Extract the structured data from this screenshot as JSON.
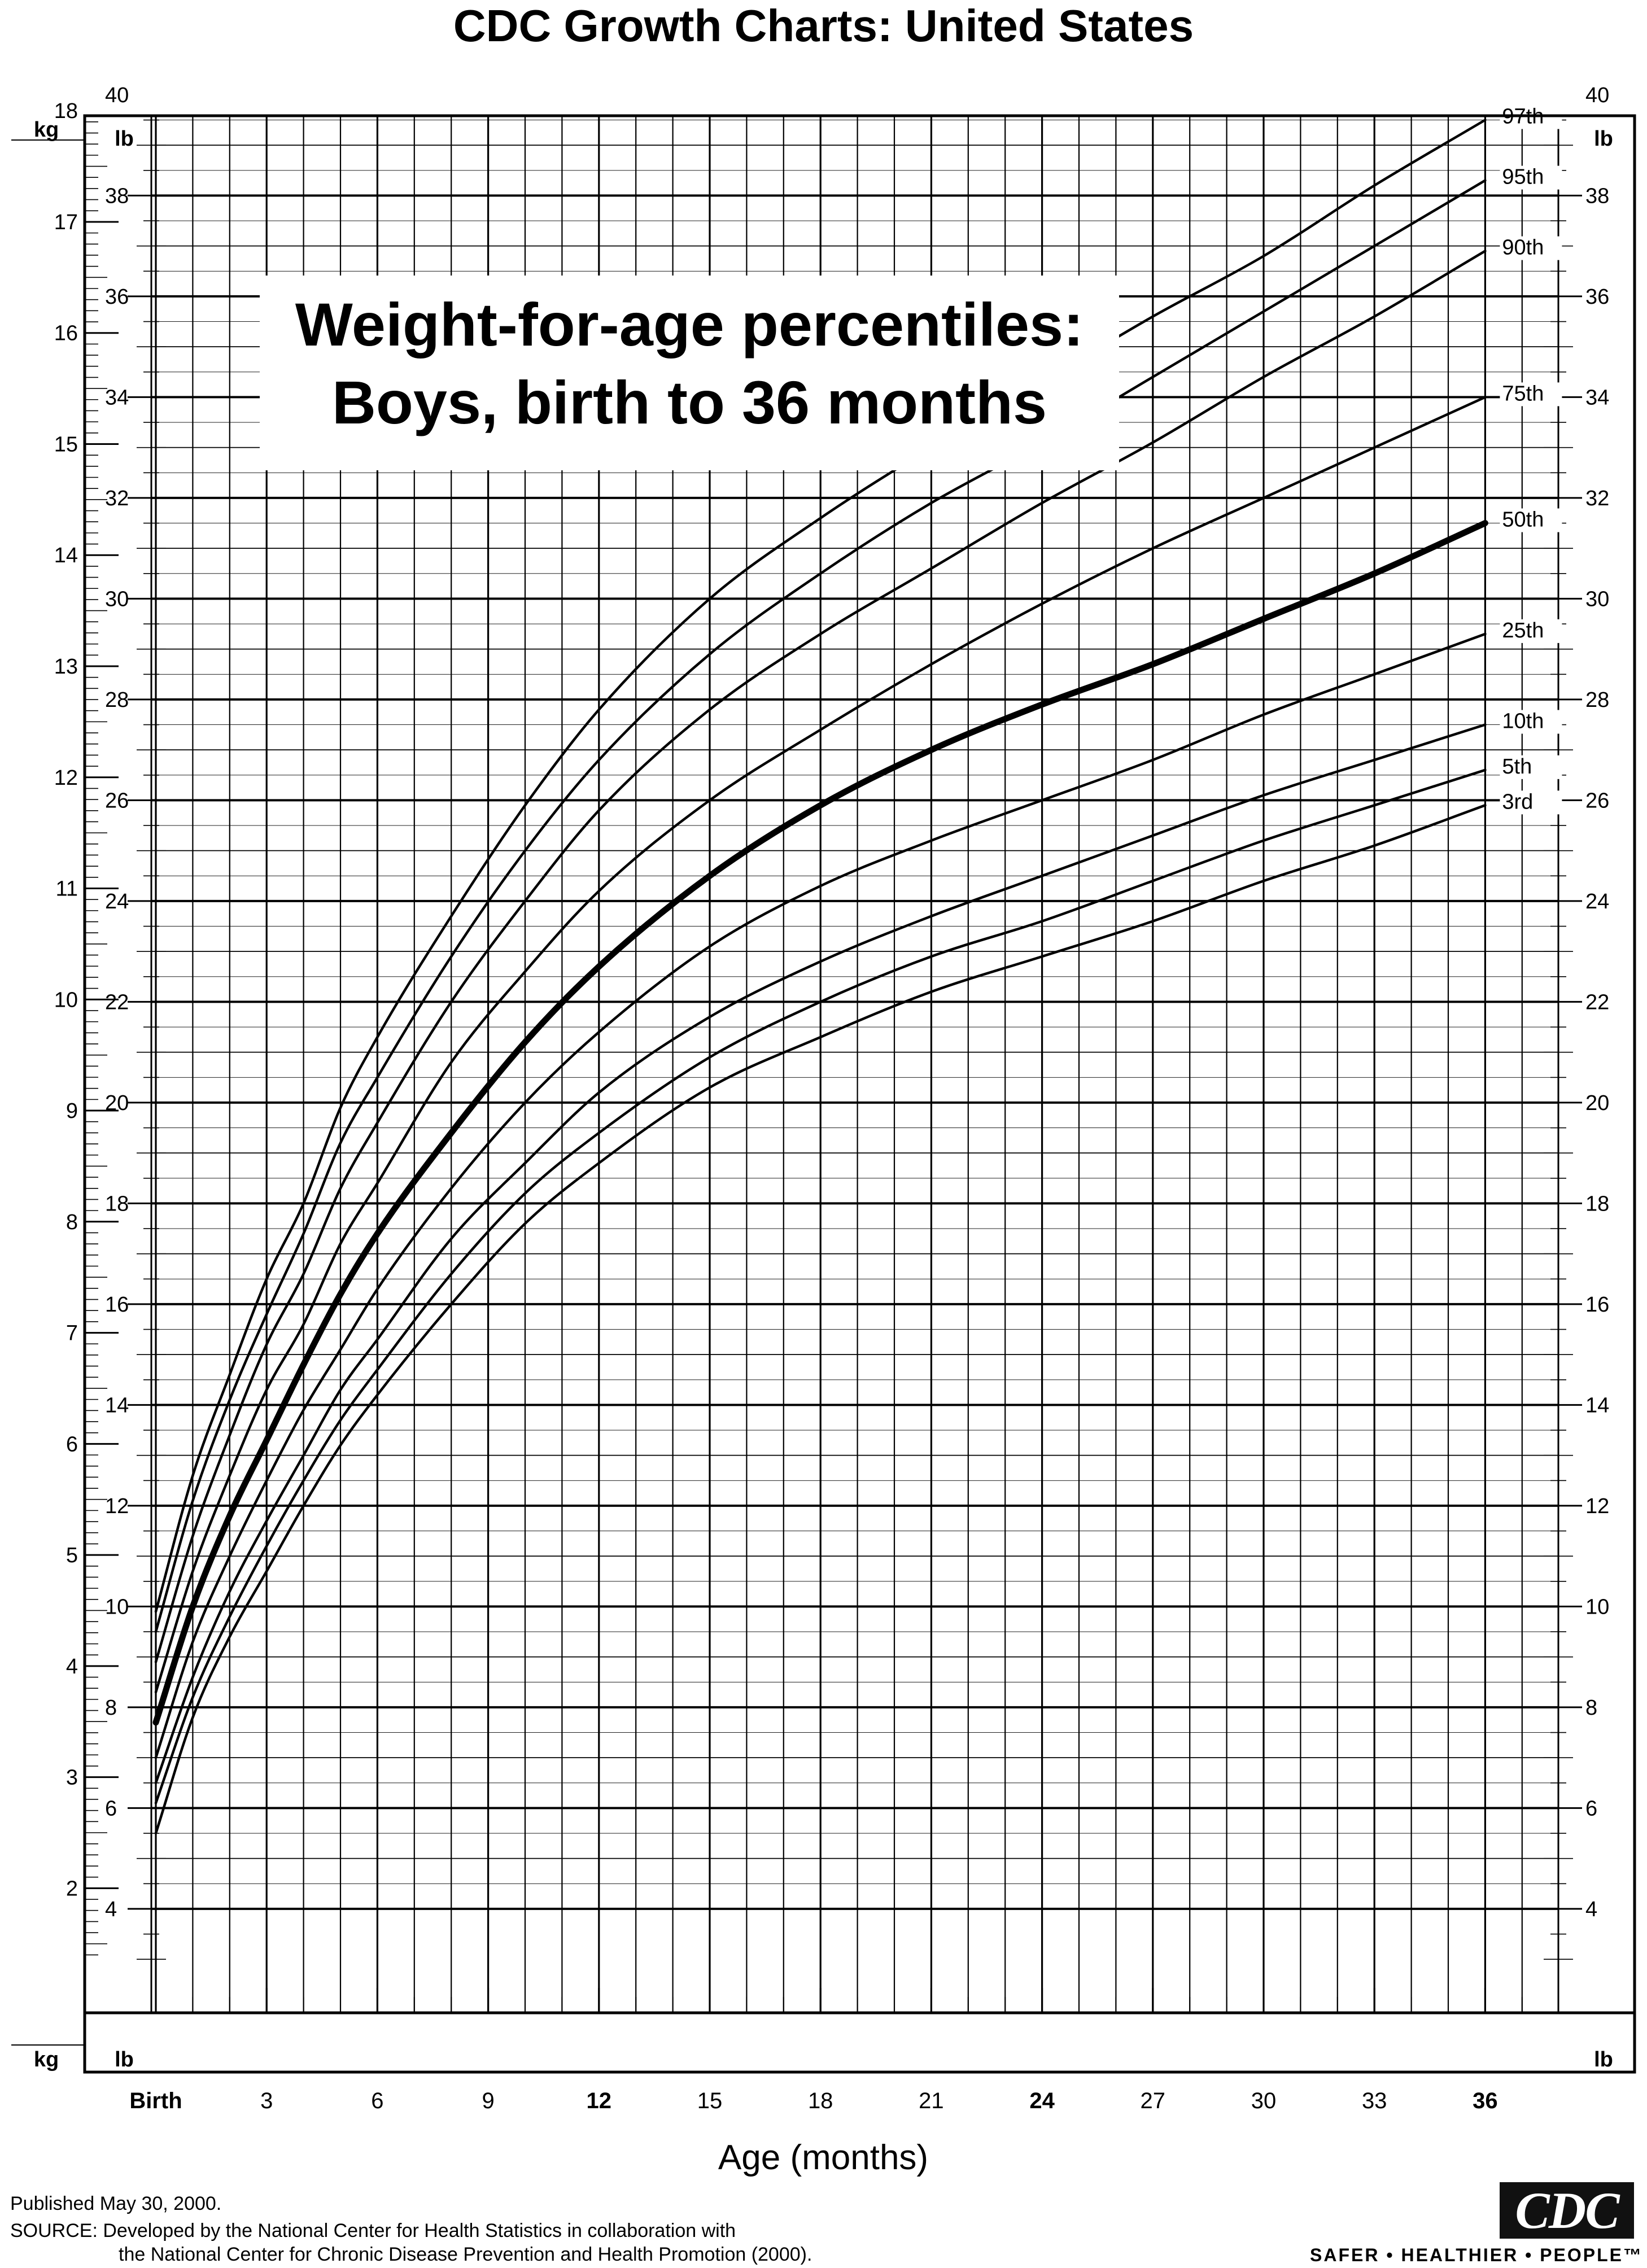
{
  "header": {
    "title": "CDC Growth Charts: United States"
  },
  "chart_data": {
    "type": "line",
    "title": "Weight-for-age percentiles:",
    "subtitle": "Boys, birth to 36 months",
    "xlabel": "Age (months)",
    "xlim": [
      -1,
      38
    ],
    "x_ticks": [
      {
        "value": 0,
        "label": "Birth",
        "bold": true
      },
      {
        "value": 3,
        "label": "3",
        "bold": false
      },
      {
        "value": 6,
        "label": "6",
        "bold": false
      },
      {
        "value": 9,
        "label": "9",
        "bold": false
      },
      {
        "value": 12,
        "label": "12",
        "bold": true
      },
      {
        "value": 15,
        "label": "15",
        "bold": false
      },
      {
        "value": 18,
        "label": "18",
        "bold": false
      },
      {
        "value": 21,
        "label": "21",
        "bold": false
      },
      {
        "value": 24,
        "label": "24",
        "bold": true
      },
      {
        "value": 27,
        "label": "27",
        "bold": false
      },
      {
        "value": 30,
        "label": "30",
        "bold": false
      },
      {
        "value": 33,
        "label": "33",
        "bold": false
      },
      {
        "value": 36,
        "label": "36",
        "bold": true
      }
    ],
    "y_left_kg_label": "kg",
    "y_lb_label": "lb",
    "ylim_lb": [
      2.93,
      41.9
    ],
    "kg_ticks": [
      "2",
      "3",
      "4",
      "5",
      "6",
      "7",
      "8",
      "9",
      "10",
      "11",
      "12",
      "13",
      "14",
      "15",
      "16",
      "17",
      "18"
    ],
    "lb_ticks": [
      "4",
      "6",
      "8",
      "10",
      "12",
      "14",
      "16",
      "18",
      "20",
      "22",
      "24",
      "26",
      "28",
      "30",
      "32",
      "34",
      "36",
      "38",
      "40"
    ],
    "grid": true,
    "series": [
      {
        "name": "97th",
        "bold": false,
        "x": [
          0,
          1,
          2,
          3,
          4,
          5,
          6,
          8,
          10,
          12,
          15,
          18,
          21,
          24,
          27,
          30,
          33,
          36
        ],
        "values_lb": [
          9.9,
          12.6,
          14.6,
          16.5,
          18.0,
          19.9,
          21.3,
          23.7,
          25.9,
          27.8,
          30.0,
          31.6,
          33.0,
          34.3,
          35.6,
          36.8,
          38.2,
          39.5
        ]
      },
      {
        "name": "95th",
        "bold": false,
        "x": [
          0,
          1,
          2,
          3,
          4,
          5,
          6,
          8,
          10,
          12,
          15,
          18,
          21,
          24,
          27,
          30,
          33,
          36
        ],
        "values_lb": [
          9.5,
          12.1,
          14.1,
          15.8,
          17.4,
          19.2,
          20.5,
          22.9,
          25.0,
          26.8,
          28.9,
          30.5,
          31.9,
          33.1,
          34.4,
          35.7,
          37.0,
          38.3
        ]
      },
      {
        "name": "90th",
        "bold": false,
        "x": [
          0,
          1,
          2,
          3,
          4,
          5,
          6,
          8,
          10,
          12,
          15,
          18,
          21,
          24,
          27,
          30,
          33,
          36
        ],
        "values_lb": [
          8.9,
          11.4,
          13.4,
          15.2,
          16.6,
          18.3,
          19.6,
          22.0,
          24.0,
          25.8,
          27.8,
          29.3,
          30.6,
          31.9,
          33.1,
          34.4,
          35.6,
          36.9
        ]
      },
      {
        "name": "75th",
        "bold": false,
        "x": [
          0,
          1,
          2,
          3,
          4,
          5,
          6,
          8,
          10,
          12,
          15,
          18,
          21,
          24,
          27,
          30,
          33,
          36
        ],
        "values_lb": [
          8.3,
          10.7,
          12.6,
          14.3,
          15.6,
          17.2,
          18.4,
          20.8,
          22.6,
          24.2,
          26.0,
          27.4,
          28.7,
          29.9,
          31.0,
          32.0,
          33.0,
          34.0
        ]
      },
      {
        "name": "50th",
        "bold": true,
        "x": [
          0,
          1,
          2,
          3,
          4,
          5,
          6,
          8,
          10,
          12,
          15,
          18,
          21,
          24,
          27,
          30,
          33,
          36
        ],
        "values_lb": [
          7.7,
          10.0,
          11.8,
          13.3,
          14.8,
          16.2,
          17.4,
          19.4,
          21.2,
          22.7,
          24.5,
          25.9,
          27.0,
          27.9,
          28.7,
          29.6,
          30.5,
          31.5
        ]
      },
      {
        "name": "25th",
        "bold": false,
        "x": [
          0,
          1,
          2,
          3,
          4,
          5,
          6,
          8,
          10,
          12,
          15,
          18,
          21,
          24,
          27,
          30,
          33,
          36
        ],
        "values_lb": [
          7.0,
          9.3,
          11.0,
          12.5,
          13.9,
          15.1,
          16.3,
          18.3,
          20.0,
          21.4,
          23.1,
          24.3,
          25.2,
          26.0,
          26.8,
          27.7,
          28.5,
          29.3
        ]
      },
      {
        "name": "10th",
        "bold": false,
        "x": [
          0,
          1,
          2,
          3,
          4,
          5,
          6,
          8,
          10,
          12,
          15,
          18,
          21,
          24,
          27,
          30,
          33,
          36
        ],
        "values_lb": [
          6.5,
          8.6,
          10.3,
          11.7,
          13.0,
          14.3,
          15.3,
          17.3,
          18.8,
          20.2,
          21.7,
          22.8,
          23.7,
          24.5,
          25.3,
          26.1,
          26.8,
          27.5
        ]
      },
      {
        "name": "5th",
        "bold": false,
        "x": [
          0,
          1,
          2,
          3,
          4,
          5,
          6,
          8,
          10,
          12,
          15,
          18,
          21,
          24,
          27,
          30,
          33,
          36
        ],
        "values_lb": [
          6.1,
          8.2,
          9.8,
          11.2,
          12.5,
          13.7,
          14.7,
          16.6,
          18.2,
          19.4,
          20.9,
          22.0,
          22.9,
          23.6,
          24.4,
          25.2,
          25.9,
          26.6
        ]
      },
      {
        "name": "3rd",
        "bold": false,
        "x": [
          0,
          1,
          2,
          3,
          4,
          5,
          6,
          8,
          10,
          12,
          15,
          18,
          21,
          24,
          27,
          30,
          33,
          36
        ],
        "values_lb": [
          5.5,
          7.8,
          9.4,
          10.7,
          12.0,
          13.2,
          14.2,
          16.0,
          17.6,
          18.8,
          20.3,
          21.3,
          22.2,
          22.9,
          23.6,
          24.4,
          25.1,
          25.9
        ]
      }
    ]
  },
  "footer": {
    "published": "Published May 30, 2000.",
    "source_line1": "SOURCE: Developed by the National Center for Health Statistics in collaboration with",
    "source_line2": "the National Center for Chronic Disease Prevention and Health Promotion (2000).",
    "logo_text": "CDC",
    "tagline": "SAFER • HEALTHIER • PEOPLE™"
  }
}
